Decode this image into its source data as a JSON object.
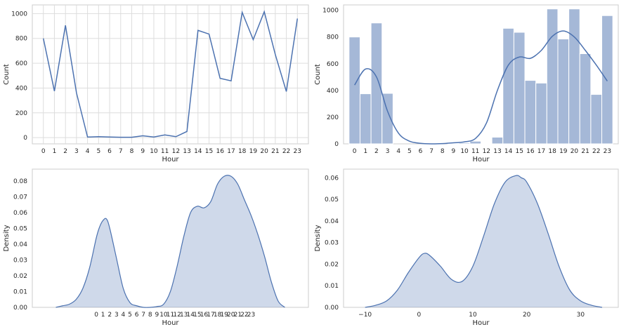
{
  "chart_data": [
    {
      "type": "line",
      "xlabel": "Hour",
      "ylabel": "Count",
      "x": [
        0,
        1,
        2,
        3,
        4,
        5,
        6,
        7,
        8,
        9,
        10,
        11,
        12,
        13,
        14,
        15,
        16,
        17,
        18,
        19,
        20,
        21,
        22,
        23
      ],
      "xticks": [
        "0",
        "1",
        "2",
        "3",
        "4",
        "5",
        "6",
        "7",
        "8",
        "9",
        "10",
        "11",
        "12",
        "13",
        "14",
        "15",
        "16",
        "17",
        "18",
        "19",
        "20",
        "21",
        "22",
        "23"
      ],
      "xlim": [
        -1.0,
        24.0
      ],
      "series": [
        {
          "values": [
            800,
            375,
            905,
            360,
            5,
            8,
            5,
            3,
            3,
            15,
            5,
            22,
            8,
            50,
            865,
            835,
            478,
            458,
            1010,
            790,
            1015,
            670,
            372,
            960
          ]
        }
      ],
      "ylim": [
        -50,
        1070
      ],
      "yticks": [
        0,
        200,
        400,
        600,
        800,
        1000
      ],
      "grid": true,
      "color": "#4c72b0"
    },
    {
      "type": "bar",
      "xlabel": "Hour",
      "ylabel": "Count",
      "x": [
        0,
        1,
        2,
        3,
        4,
        5,
        6,
        7,
        8,
        9,
        10,
        11,
        12,
        13,
        14,
        15,
        16,
        17,
        18,
        19,
        20,
        21,
        22,
        23
      ],
      "xticks": [
        "0",
        "1",
        "2",
        "3",
        "4",
        "5",
        "6",
        "7",
        "8",
        "9",
        "10",
        "11",
        "12",
        "13",
        "14",
        "15",
        "16",
        "17",
        "18",
        "19",
        "20",
        "21",
        "22",
        "23"
      ],
      "xlim": [
        -1.0,
        24.0
      ],
      "values": [
        800,
        375,
        905,
        378,
        0,
        0,
        0,
        0,
        0,
        5,
        8,
        20,
        5,
        50,
        865,
        835,
        475,
        455,
        1010,
        785,
        1010,
        675,
        370,
        960
      ],
      "kde": {
        "x": [
          0,
          1,
          2,
          3,
          4,
          5,
          6,
          7,
          8,
          9,
          10,
          11,
          12,
          13,
          14,
          15,
          16,
          17,
          18,
          19,
          20,
          21,
          22,
          23
        ],
        "y": [
          440,
          560,
          500,
          245,
          80,
          20,
          4,
          0,
          2,
          8,
          15,
          40,
          155,
          400,
          590,
          650,
          640,
          700,
          805,
          845,
          800,
          700,
          590,
          470
        ]
      },
      "ylim": [
        0,
        1040
      ],
      "yticks": [
        0,
        200,
        400,
        600,
        800,
        1000
      ],
      "grid": false,
      "color": "#4c72b0"
    },
    {
      "type": "area",
      "xlabel": "Hour",
      "ylabel": "Density",
      "x": [
        -6,
        -5,
        -4,
        -3,
        -2,
        -1,
        0,
        0.5,
        1,
        1.5,
        2,
        3,
        4,
        5,
        6,
        7,
        8,
        9,
        10,
        11,
        12,
        13,
        14,
        15,
        16,
        17,
        18,
        19,
        20,
        21,
        22,
        23,
        24,
        25,
        26,
        27,
        28
      ],
      "y": [
        0,
        0.001,
        0.002,
        0.005,
        0.012,
        0.025,
        0.044,
        0.051,
        0.055,
        0.056,
        0.05,
        0.031,
        0.012,
        0.003,
        0.001,
        0.0,
        0.0,
        0.0005,
        0.002,
        0.01,
        0.026,
        0.045,
        0.06,
        0.064,
        0.063,
        0.067,
        0.078,
        0.083,
        0.083,
        0.078,
        0.068,
        0.058,
        0.046,
        0.032,
        0.016,
        0.004,
        0
      ],
      "xticks": [
        "0",
        "1",
        "2",
        "3",
        "4",
        "5",
        "6",
        "7",
        "8",
        "9",
        "10",
        "11",
        "12",
        "13",
        "14",
        "15",
        "16",
        "17",
        "18",
        "19",
        "20",
        "21",
        "22",
        "23"
      ],
      "xlim": [
        -9.5,
        31.5
      ],
      "ylim": [
        0,
        0.0875
      ],
      "yticks": [
        "0.00",
        "0.01",
        "0.02",
        "0.03",
        "0.04",
        "0.05",
        "0.06",
        "0.07",
        "0.08"
      ],
      "grid": false,
      "color": "#4c72b0"
    },
    {
      "type": "area",
      "xlabel": "Hour",
      "ylabel": "Density",
      "x": [
        -10,
        -8,
        -6,
        -4,
        -2,
        0,
        1,
        2,
        4,
        6,
        8,
        10,
        12,
        14,
        16,
        18,
        19,
        20,
        22,
        24,
        26,
        28,
        30,
        32,
        34
      ],
      "y": [
        0.0,
        0.001,
        0.003,
        0.008,
        0.016,
        0.023,
        0.025,
        0.024,
        0.019,
        0.013,
        0.012,
        0.019,
        0.033,
        0.048,
        0.058,
        0.061,
        0.06,
        0.058,
        0.048,
        0.034,
        0.019,
        0.008,
        0.003,
        0.001,
        0.0
      ],
      "xticks": [
        "−10",
        "0",
        "10",
        "20",
        "30"
      ],
      "xtick_values": [
        -10,
        0,
        10,
        20,
        30
      ],
      "xlim": [
        -14,
        37
      ],
      "ylim": [
        0,
        0.064
      ],
      "yticks": [
        "0.00",
        "0.01",
        "0.02",
        "0.03",
        "0.04",
        "0.05",
        "0.06"
      ],
      "grid": false,
      "color": "#4c72b0"
    }
  ]
}
